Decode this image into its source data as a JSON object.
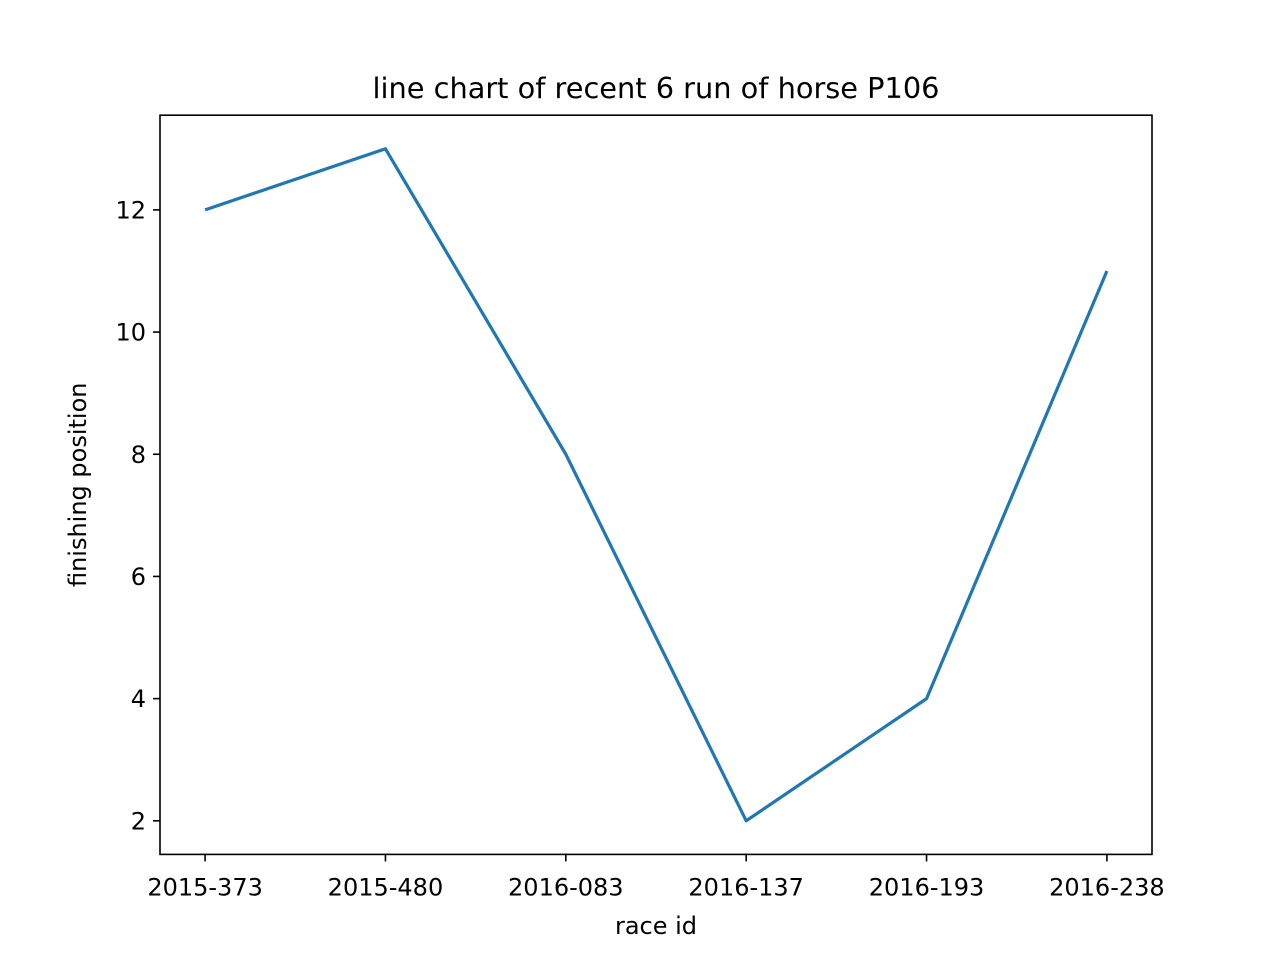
{
  "chart_data": {
    "type": "line",
    "title": "line chart of recent 6 run of horse P106",
    "xlabel": "race id",
    "ylabel": "finishing position",
    "categories": [
      "2015-373",
      "2015-480",
      "2016-083",
      "2016-137",
      "2016-193",
      "2016-238"
    ],
    "series": [
      {
        "values": [
          12,
          13,
          8,
          2,
          4,
          11
        ],
        "color": "#1f77b4"
      }
    ],
    "yticks": [
      2,
      4,
      6,
      8,
      10,
      12
    ],
    "ylim": [
      1.45,
      13.55
    ],
    "grid": false,
    "legend": "none"
  }
}
